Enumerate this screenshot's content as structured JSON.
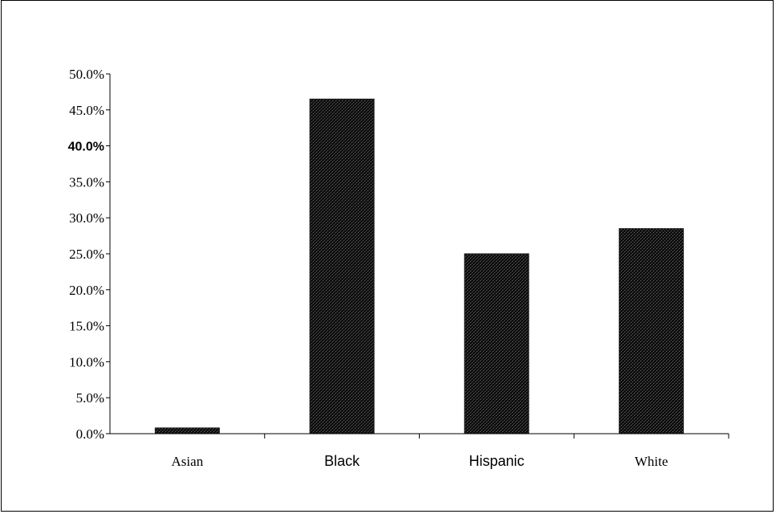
{
  "chart_data": {
    "type": "bar",
    "title": "",
    "xlabel": "",
    "ylabel": "",
    "categories": [
      "Asian",
      "Black",
      "Hispanic",
      "White"
    ],
    "values": [
      0.8,
      46.5,
      25.0,
      28.5
    ],
    "ylim": [
      0,
      50
    ],
    "yticks": [
      "0.0%",
      "5.0%",
      "10.0%",
      "15.0%",
      "20.0%",
      "25.0%",
      "30.0%",
      "35.0%",
      "40.0%",
      "45.0%",
      "50.0%"
    ],
    "grid": false,
    "legend": "none",
    "bar_color": "#1a1a1a"
  }
}
